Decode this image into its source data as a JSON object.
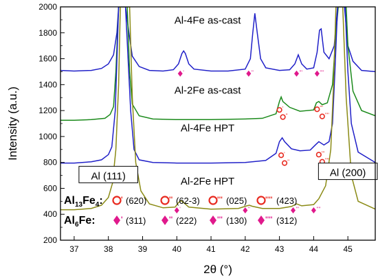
{
  "chart_data": {
    "type": "line",
    "title": "",
    "xlabel": "2θ (°)",
    "ylabel": "Intensity (a.u.)",
    "xlim": [
      36.6,
      45.8
    ],
    "ylim": [
      200,
      2000
    ],
    "x_ticks": [
      37,
      38,
      39,
      40,
      41,
      42,
      43,
      44,
      45
    ],
    "y_ticks": [
      200,
      400,
      600,
      800,
      1000,
      1200,
      1400,
      1600,
      1800,
      2000
    ],
    "grid": false,
    "series": [
      {
        "name": "Al-4Fe as-cast",
        "color": "#1f1fc8",
        "points": [
          [
            36.6,
            1510
          ],
          [
            37.0,
            1505
          ],
          [
            37.5,
            1510
          ],
          [
            37.8,
            1525
          ],
          [
            38.0,
            1560
          ],
          [
            38.15,
            1630
          ],
          [
            38.25,
            1800
          ],
          [
            38.3,
            2000
          ],
          [
            38.5,
            2000
          ],
          [
            38.6,
            1800
          ],
          [
            38.7,
            1620
          ],
          [
            38.9,
            1540
          ],
          [
            39.2,
            1510
          ],
          [
            39.6,
            1505
          ],
          [
            39.9,
            1515
          ],
          [
            40.05,
            1560
          ],
          [
            40.15,
            1640
          ],
          [
            40.2,
            1660
          ],
          [
            40.25,
            1640
          ],
          [
            40.35,
            1560
          ],
          [
            40.5,
            1520
          ],
          [
            41.0,
            1505
          ],
          [
            41.5,
            1505
          ],
          [
            42.0,
            1520
          ],
          [
            42.15,
            1600
          ],
          [
            42.22,
            1800
          ],
          [
            42.28,
            1950
          ],
          [
            42.35,
            1800
          ],
          [
            42.45,
            1600
          ],
          [
            42.6,
            1530
          ],
          [
            43.0,
            1510
          ],
          [
            43.3,
            1515
          ],
          [
            43.45,
            1560
          ],
          [
            43.55,
            1630
          ],
          [
            43.65,
            1560
          ],
          [
            43.8,
            1520
          ],
          [
            44.0,
            1530
          ],
          [
            44.1,
            1650
          ],
          [
            44.17,
            1820
          ],
          [
            44.22,
            1830
          ],
          [
            44.3,
            1650
          ],
          [
            44.45,
            1600
          ],
          [
            44.6,
            1700
          ],
          [
            44.7,
            2000
          ],
          [
            44.9,
            2000
          ],
          [
            45.0,
            1700
          ],
          [
            45.15,
            1580
          ],
          [
            45.4,
            1510
          ],
          [
            45.8,
            1500
          ]
        ]
      },
      {
        "name": "Al-2Fe as-cast",
        "color": "#1b8a1b",
        "points": [
          [
            36.6,
            1125
          ],
          [
            37.0,
            1125
          ],
          [
            37.5,
            1130
          ],
          [
            37.9,
            1140
          ],
          [
            38.05,
            1170
          ],
          [
            38.15,
            1230
          ],
          [
            38.22,
            1500
          ],
          [
            38.3,
            2000
          ],
          [
            38.55,
            2000
          ],
          [
            38.62,
            1500
          ],
          [
            38.7,
            1250
          ],
          [
            38.9,
            1160
          ],
          [
            39.3,
            1135
          ],
          [
            40.0,
            1130
          ],
          [
            41.0,
            1130
          ],
          [
            42.0,
            1135
          ],
          [
            42.5,
            1140
          ],
          [
            42.9,
            1175
          ],
          [
            43.0,
            1270
          ],
          [
            43.05,
            1305
          ],
          [
            43.1,
            1270
          ],
          [
            43.3,
            1225
          ],
          [
            43.6,
            1195
          ],
          [
            44.0,
            1205
          ],
          [
            44.08,
            1260
          ],
          [
            44.15,
            1270
          ],
          [
            44.25,
            1245
          ],
          [
            44.4,
            1260
          ],
          [
            44.55,
            1400
          ],
          [
            44.65,
            1800
          ],
          [
            44.72,
            2000
          ],
          [
            44.95,
            2000
          ],
          [
            45.0,
            1700
          ],
          [
            45.15,
            1350
          ],
          [
            45.4,
            1200
          ],
          [
            45.8,
            1160
          ]
        ]
      },
      {
        "name": "Al-4Fe HPT",
        "color": "#1f1fc8",
        "points": [
          [
            36.6,
            795
          ],
          [
            37.0,
            795
          ],
          [
            37.5,
            805
          ],
          [
            37.8,
            820
          ],
          [
            38.0,
            860
          ],
          [
            38.1,
            920
          ],
          [
            38.2,
            1200
          ],
          [
            38.3,
            2000
          ],
          [
            38.5,
            2000
          ],
          [
            38.65,
            1200
          ],
          [
            38.75,
            900
          ],
          [
            38.9,
            820
          ],
          [
            39.3,
            800
          ],
          [
            40.0,
            795
          ],
          [
            41.0,
            795
          ],
          [
            42.0,
            800
          ],
          [
            42.6,
            815
          ],
          [
            42.9,
            870
          ],
          [
            43.0,
            960
          ],
          [
            43.08,
            990
          ],
          [
            43.15,
            960
          ],
          [
            43.35,
            905
          ],
          [
            43.6,
            890
          ],
          [
            43.9,
            895
          ],
          [
            44.05,
            935
          ],
          [
            44.15,
            960
          ],
          [
            44.3,
            935
          ],
          [
            44.45,
            960
          ],
          [
            44.55,
            1100
          ],
          [
            44.62,
            1500
          ],
          [
            44.7,
            2000
          ],
          [
            44.92,
            2000
          ],
          [
            45.0,
            1500
          ],
          [
            45.1,
            1100
          ],
          [
            45.3,
            880
          ],
          [
            45.8,
            800
          ]
        ]
      },
      {
        "name": "Al-2Fe HPT",
        "color": "#8a8a14",
        "points": [
          [
            36.6,
            435
          ],
          [
            37.0,
            435
          ],
          [
            37.5,
            445
          ],
          [
            37.8,
            470
          ],
          [
            38.0,
            530
          ],
          [
            38.12,
            640
          ],
          [
            38.22,
            900
          ],
          [
            38.3,
            1400
          ],
          [
            38.35,
            2000
          ],
          [
            38.62,
            2000
          ],
          [
            38.7,
            1300
          ],
          [
            38.8,
            800
          ],
          [
            38.95,
            580
          ],
          [
            39.2,
            480
          ],
          [
            39.6,
            450
          ],
          [
            39.95,
            455
          ],
          [
            40.05,
            490
          ],
          [
            40.12,
            505
          ],
          [
            40.2,
            490
          ],
          [
            40.35,
            455
          ],
          [
            41.0,
            440
          ],
          [
            41.8,
            445
          ],
          [
            42.05,
            465
          ],
          [
            42.12,
            470
          ],
          [
            42.2,
            462
          ],
          [
            42.5,
            445
          ],
          [
            43.0,
            445
          ],
          [
            43.35,
            460
          ],
          [
            43.5,
            480
          ],
          [
            43.65,
            465
          ],
          [
            44.0,
            475
          ],
          [
            44.15,
            520
          ],
          [
            44.35,
            620
          ],
          [
            44.5,
            900
          ],
          [
            44.58,
            1400
          ],
          [
            44.65,
            2000
          ],
          [
            44.85,
            2000
          ],
          [
            44.95,
            1300
          ],
          [
            45.1,
            700
          ],
          [
            45.3,
            500
          ],
          [
            45.8,
            440
          ]
        ]
      }
    ],
    "annotations": [
      {
        "text": "Al-4Fe as-cast",
        "x": 40.9,
        "y": 1880
      },
      {
        "text": "Al-2Fe as-cast",
        "x": 40.9,
        "y": 1340
      },
      {
        "text": "Al-4Fe HPT",
        "x": 40.9,
        "y": 1050
      },
      {
        "text": "Al-2Fe HPT",
        "x": 40.9,
        "y": 640
      },
      {
        "text": "Al (111)",
        "x": 38.0,
        "y": 680,
        "boxed": true
      },
      {
        "text": "Al (200)",
        "x": 45.0,
        "y": 705,
        "boxed": true
      }
    ],
    "markers": [
      {
        "phase": "Al6Fe",
        "x": 40.1,
        "y": 1485,
        "ticks": "'"
      },
      {
        "phase": "Al6Fe",
        "x": 42.1,
        "y": 1485,
        "ticks": "''"
      },
      {
        "phase": "Al6Fe",
        "x": 43.5,
        "y": 1485,
        "ticks": "'''"
      },
      {
        "phase": "Al6Fe",
        "x": 44.1,
        "y": 1485,
        "ticks": "''''"
      },
      {
        "phase": "Al13Fe4",
        "x": 43.0,
        "y": 1205,
        "ticks": "'"
      },
      {
        "phase": "Al13Fe4",
        "x": 43.1,
        "y": 1150,
        "ticks": "''"
      },
      {
        "phase": "Al13Fe4",
        "x": 44.1,
        "y": 1210,
        "ticks": "'''"
      },
      {
        "phase": "Al13Fe4",
        "x": 44.25,
        "y": 1155,
        "ticks": "''''"
      },
      {
        "phase": "Al13Fe4",
        "x": 43.05,
        "y": 855,
        "ticks": "'"
      },
      {
        "phase": "Al13Fe4",
        "x": 43.15,
        "y": 795,
        "ticks": "''"
      },
      {
        "phase": "Al13Fe4",
        "x": 44.15,
        "y": 860,
        "ticks": "'''"
      },
      {
        "phase": "Al13Fe4",
        "x": 44.25,
        "y": 805,
        "ticks": "''''"
      },
      {
        "phase": "Al6Fe",
        "x": 40.0,
        "y": 430,
        "ticks": "'"
      },
      {
        "phase": "Al6Fe",
        "x": 42.0,
        "y": 430,
        "ticks": "''"
      },
      {
        "phase": "Al6Fe",
        "x": 43.4,
        "y": 430,
        "ticks": "'''"
      },
      {
        "phase": "Al6Fe",
        "x": 44.0,
        "y": 430,
        "ticks": "''''"
      }
    ],
    "legend": {
      "placement": "bottom-left",
      "rows": [
        {
          "label_main": "Al",
          "label_sub1": "13",
          "label_mid": "Fe",
          "label_sub2": "4",
          "label_tail": ":",
          "symbol": "circle",
          "color": "#e8291f",
          "entries": [
            {
              "ticks": "'",
              "hkl": "(620)"
            },
            {
              "ticks": "''",
              "hkl": "(62-3)"
            },
            {
              "ticks": "'''",
              "hkl": "(025)"
            },
            {
              "ticks": "''''",
              "hkl": "(423)"
            }
          ]
        },
        {
          "label_main": "Al",
          "label_sub1": "6",
          "label_mid": "Fe:",
          "label_sub2": "",
          "label_tail": "",
          "symbol": "diamond",
          "color": "#e0198c",
          "entries": [
            {
              "ticks": "'",
              "hkl": "(311)"
            },
            {
              "ticks": "''",
              "hkl": "(222)"
            },
            {
              "ticks": "'''",
              "hkl": "(130)"
            },
            {
              "ticks": "''''",
              "hkl": "(312)"
            }
          ]
        }
      ]
    }
  }
}
